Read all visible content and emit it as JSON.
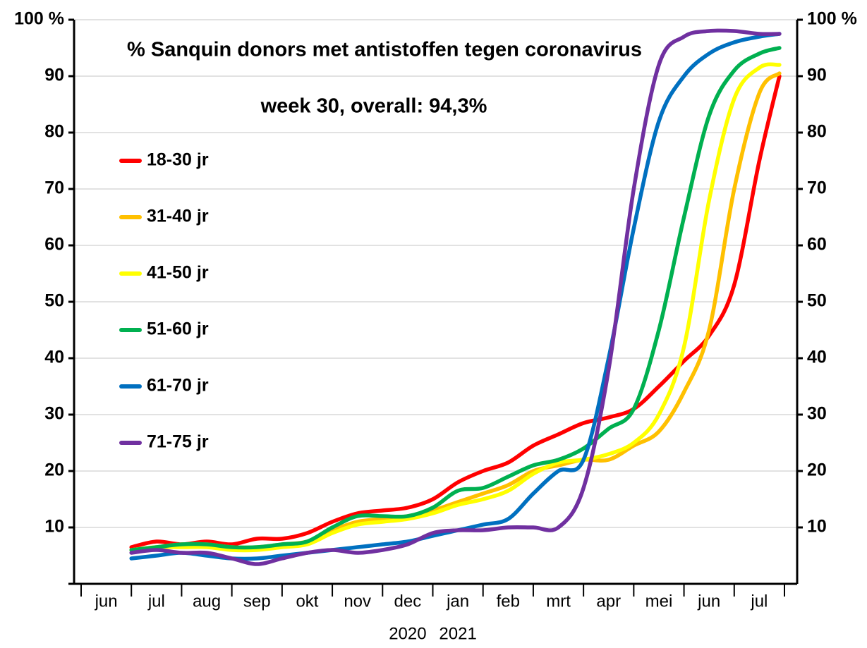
{
  "chart_data": {
    "type": "line",
    "title": "% Sanquin donors met antistoffen tegen coronavirus",
    "subtitle": "week 30, overall: 94,3%",
    "year_labels": [
      "2020",
      "2021"
    ],
    "x": [
      1,
      1.5,
      2,
      2.5,
      3,
      3.5,
      4,
      4.5,
      5,
      5.5,
      6,
      6.5,
      7,
      7.5,
      8,
      8.5,
      9,
      9.5,
      10,
      10.5,
      11,
      11.5,
      12,
      12.5,
      13,
      13.5,
      13.9
    ],
    "xlim": [
      0,
      14
    ],
    "xticks": [
      {
        "value": 0.5,
        "label": "jun"
      },
      {
        "value": 1.5,
        "label": "jul"
      },
      {
        "value": 2.5,
        "label": "aug"
      },
      {
        "value": 3.5,
        "label": "sep"
      },
      {
        "value": 4.5,
        "label": "okt"
      },
      {
        "value": 5.5,
        "label": "nov"
      },
      {
        "value": 6.5,
        "label": "dec"
      },
      {
        "value": 7.5,
        "label": "jan"
      },
      {
        "value": 8.5,
        "label": "feb"
      },
      {
        "value": 9.5,
        "label": "mrt"
      },
      {
        "value": 10.5,
        "label": "apr"
      },
      {
        "value": 11.5,
        "label": "mei"
      },
      {
        "value": 12.5,
        "label": "jun"
      },
      {
        "value": 13.5,
        "label": "jul"
      }
    ],
    "ylim": [
      0,
      100
    ],
    "yticks": [
      10,
      20,
      30,
      40,
      50,
      60,
      70,
      80,
      90,
      {
        "value": 100,
        "label": "100 %"
      }
    ],
    "y2lim": [
      0,
      100
    ],
    "y2ticks": [
      10,
      20,
      30,
      40,
      50,
      60,
      70,
      80,
      90,
      {
        "value": 100,
        "label": "100 %"
      }
    ],
    "grid": true,
    "legend": "upper left",
    "series": [
      {
        "name": "18-30 jr",
        "color": "#ff0000",
        "values": [
          6.5,
          7.5,
          7,
          7.5,
          7,
          8,
          8,
          9,
          11,
          12.5,
          13,
          13.5,
          15,
          18,
          20,
          21.5,
          24.5,
          26.5,
          28.5,
          29.5,
          31,
          35,
          39.5,
          44,
          53,
          75,
          90
        ]
      },
      {
        "name": "31-40 jr",
        "color": "#ffc000",
        "values": [
          6,
          6.5,
          7,
          7,
          6.5,
          6.5,
          7,
          7.5,
          9.5,
          11,
          11.5,
          12,
          13,
          14.5,
          16,
          17.5,
          20,
          21,
          22,
          22,
          24.5,
          27,
          34,
          45,
          70,
          87,
          90.5
        ]
      },
      {
        "name": "41-50 jr",
        "color": "#ffff00",
        "values": [
          6,
          6.5,
          6.5,
          6.5,
          6,
          6,
          6.5,
          7,
          9,
          10.5,
          11,
          11.5,
          12.5,
          14,
          15,
          16.5,
          19.5,
          21.5,
          22,
          23,
          25,
          30,
          42,
          68,
          86,
          91.5,
          92
        ]
      },
      {
        "name": "51-60 jr",
        "color": "#00b050",
        "values": [
          6,
          6.5,
          7,
          7,
          6.5,
          6.5,
          7,
          7.5,
          10,
          12,
          12,
          12,
          13.5,
          16.5,
          17,
          19,
          21,
          22,
          24,
          27.5,
          31,
          45,
          65,
          83,
          91,
          94,
          95
        ]
      },
      {
        "name": "61-70 jr",
        "color": "#0070c0",
        "values": [
          4.5,
          5,
          5.5,
          5,
          4.5,
          4.5,
          5,
          5.5,
          6,
          6.5,
          7,
          7.5,
          8.5,
          9.5,
          10.5,
          11.5,
          16,
          20,
          22,
          40,
          63,
          82,
          90,
          94,
          96,
          97,
          97.5
        ]
      },
      {
        "name": "71-75 jr",
        "color": "#7030a0",
        "values": [
          5.5,
          6,
          5.5,
          5.5,
          4.5,
          3.5,
          4.5,
          5.5,
          6,
          5.5,
          6,
          7,
          9,
          9.5,
          9.5,
          10,
          10,
          10,
          17,
          38,
          70,
          92,
          97,
          98,
          98,
          97.5,
          97.5
        ]
      }
    ]
  }
}
